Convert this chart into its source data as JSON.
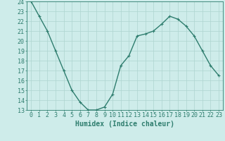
{
  "x": [
    0,
    1,
    2,
    3,
    4,
    5,
    6,
    7,
    8,
    9,
    10,
    11,
    12,
    13,
    14,
    15,
    16,
    17,
    18,
    19,
    20,
    21,
    22,
    23
  ],
  "y": [
    24.0,
    22.5,
    21.0,
    19.0,
    17.0,
    15.0,
    13.8,
    13.0,
    13.0,
    13.3,
    14.6,
    17.5,
    18.5,
    20.5,
    20.7,
    21.0,
    21.7,
    22.5,
    22.2,
    21.5,
    20.5,
    19.0,
    17.5,
    16.5
  ],
  "line_color": "#2e7d6e",
  "marker": "+",
  "marker_size": 3,
  "background_color": "#ceecea",
  "grid_color": "#aed4d0",
  "xlabel": "Humidex (Indice chaleur)",
  "ylim": [
    13,
    24
  ],
  "xlim": [
    -0.5,
    23.5
  ],
  "yticks": [
    13,
    14,
    15,
    16,
    17,
    18,
    19,
    20,
    21,
    22,
    23,
    24
  ],
  "xticks": [
    0,
    1,
    2,
    3,
    4,
    5,
    6,
    7,
    8,
    9,
    10,
    11,
    12,
    13,
    14,
    15,
    16,
    17,
    18,
    19,
    20,
    21,
    22,
    23
  ],
  "xlabel_fontsize": 7,
  "tick_fontsize": 6,
  "line_width": 1.0
}
